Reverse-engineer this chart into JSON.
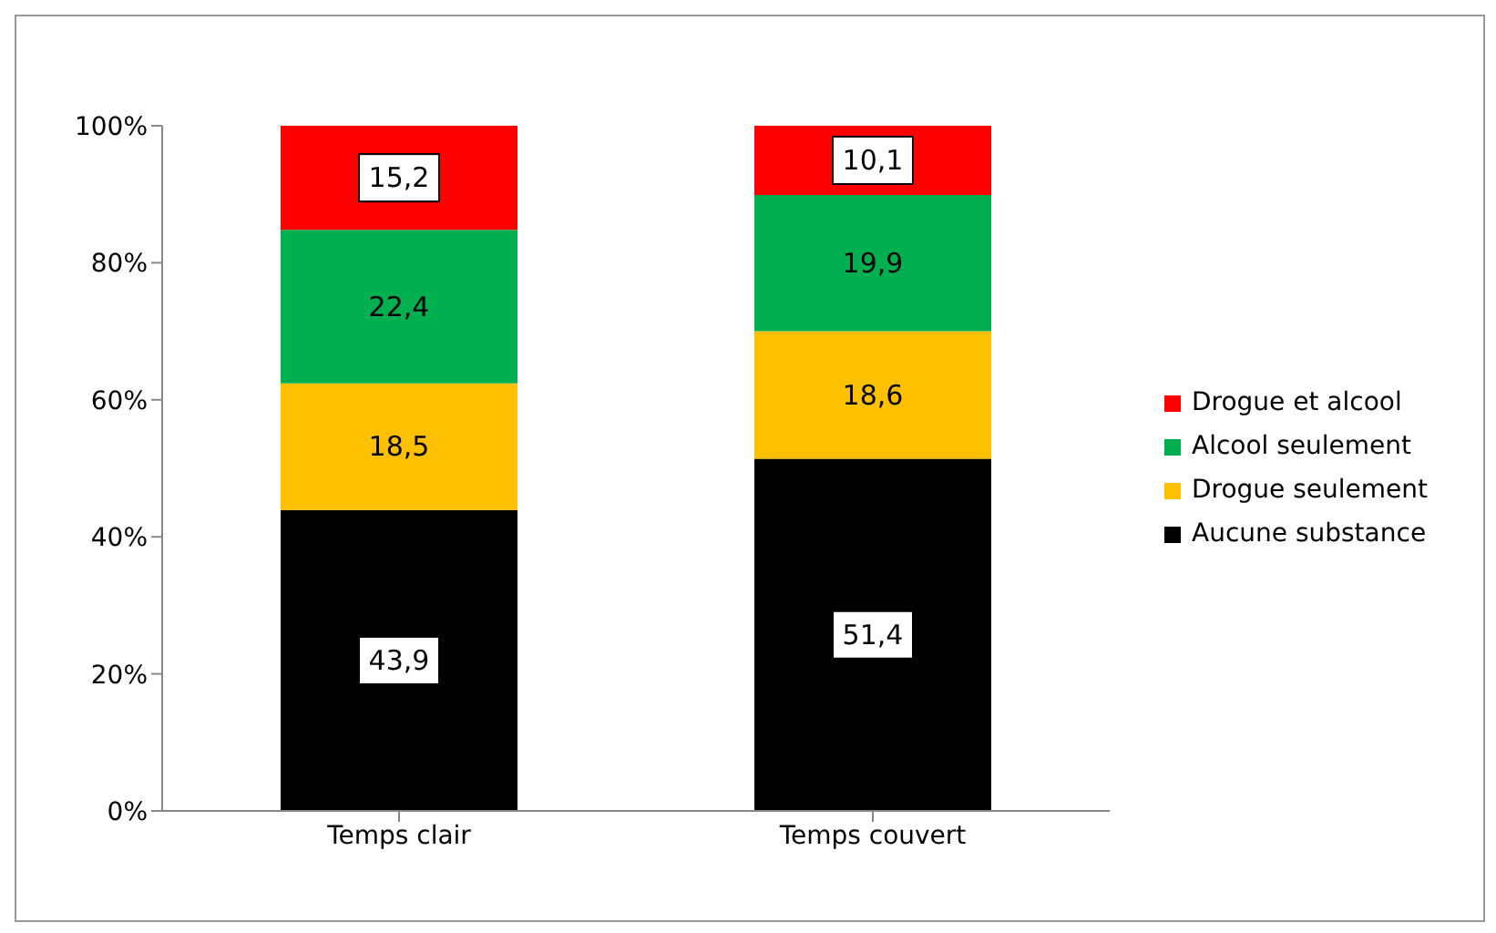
{
  "chart_data": {
    "type": "bar",
    "stacked": true,
    "categories": [
      "Temps clair",
      "Temps couvert"
    ],
    "series": [
      {
        "name": "Aucune substance",
        "color": "#000000",
        "values": [
          43.9,
          51.4
        ],
        "value_labels": [
          "43,9",
          "51,4"
        ]
      },
      {
        "name": "Drogue seulement",
        "color": "#ffc000",
        "values": [
          18.5,
          18.6
        ],
        "value_labels": [
          "18,5",
          "18,6"
        ]
      },
      {
        "name": "Alcool seulement",
        "color": "#00b050",
        "values": [
          22.4,
          19.9
        ],
        "value_labels": [
          "22,4",
          "19,9"
        ]
      },
      {
        "name": "Drogue et alcool",
        "color": "#ff0000",
        "values": [
          15.2,
          10.1
        ],
        "value_labels": [
          "15,2",
          "10,1"
        ]
      }
    ],
    "ylim": [
      0,
      100
    ],
    "yticks": [
      {
        "value": 0,
        "label": "0%"
      },
      {
        "value": 20,
        "label": "20%"
      },
      {
        "value": 40,
        "label": "40%"
      },
      {
        "value": 60,
        "label": "60%"
      },
      {
        "value": 80,
        "label": "80%"
      },
      {
        "value": 100,
        "label": "100%"
      }
    ],
    "grid": false,
    "legend": "right"
  }
}
